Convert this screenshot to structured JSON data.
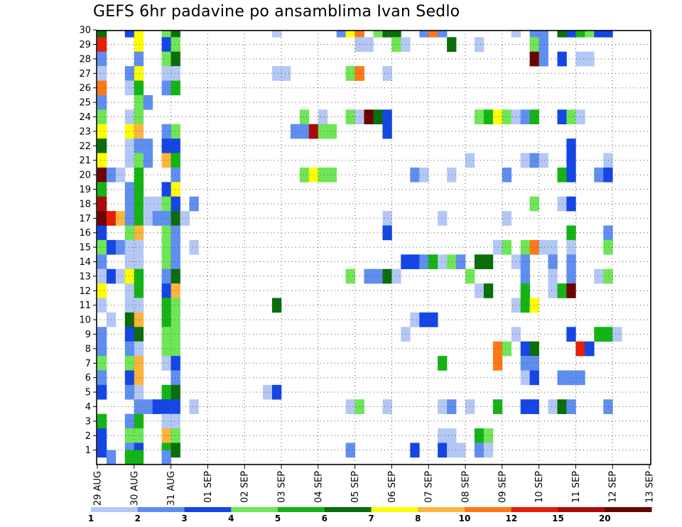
{
  "chart_data": {
    "type": "heatmap",
    "title": "GEFS 6hr padavine po ansamblima Ivan Sedlo",
    "x_tick_labels": [
      "29 AUG",
      "30 AUG",
      "31 AUG",
      "01 SEP",
      "02 SEP",
      "03 SEP",
      "04 SEP",
      "05 SEP",
      "06 SEP",
      "07 SEP",
      "08 SEP",
      "09 SEP",
      "10 SEP",
      "11 SEP",
      "12 SEP",
      "13 SEP"
    ],
    "y_tick_labels": [
      "1",
      "2",
      "3",
      "4",
      "5",
      "6",
      "7",
      "8",
      "9",
      "10",
      "11",
      "12",
      "13",
      "14",
      "15",
      "16",
      "17",
      "18",
      "19",
      "20",
      "21",
      "22",
      "23",
      "24",
      "25",
      "26",
      "27",
      "28",
      "29",
      "30"
    ],
    "grid": "dotted",
    "colorbar": {
      "bounds": [
        "1",
        "2",
        "3",
        "4",
        "5",
        "6",
        "7",
        "8",
        "10",
        "12",
        "15",
        "20"
      ],
      "colors": [
        "#b4c8f5",
        "#5f8ef0",
        "#1446e6",
        "#6ee655",
        "#14b414",
        "#0a6e0a",
        "#ffff00",
        "#ffb43c",
        "#ff7814",
        "#e61e0a",
        "#aa0a0a",
        "#6e0000"
      ]
    },
    "cells": [
      [
        0,
        30,
        "g"
      ],
      [
        0,
        29,
        "e"
      ],
      [
        0,
        28,
        "b"
      ],
      [
        0,
        27,
        "a"
      ],
      [
        0,
        26,
        "r"
      ],
      [
        0,
        25,
        "b"
      ],
      [
        0,
        24,
        "l"
      ],
      [
        0,
        23,
        "y"
      ],
      [
        0,
        22,
        "g"
      ],
      [
        0,
        21,
        "y"
      ],
      [
        0,
        20,
        "k"
      ],
      [
        0,
        19,
        "m"
      ],
      [
        0,
        18,
        "d"
      ],
      [
        0,
        17,
        "k"
      ],
      [
        0,
        16,
        "c"
      ],
      [
        0,
        15,
        "l"
      ],
      [
        0,
        14,
        "b"
      ],
      [
        0,
        13,
        "a"
      ],
      [
        0,
        12,
        "y"
      ],
      [
        0,
        11,
        "a"
      ],
      [
        0,
        9,
        "b"
      ],
      [
        0,
        8,
        "b"
      ],
      [
        0,
        7,
        "l"
      ],
      [
        0,
        6,
        "b"
      ],
      [
        0,
        5,
        "c"
      ],
      [
        0,
        3,
        "m"
      ],
      [
        0,
        2,
        "c"
      ],
      [
        0,
        1,
        "c"
      ],
      [
        1,
        20,
        "b"
      ],
      [
        1,
        17,
        "e"
      ],
      [
        1,
        15,
        "c"
      ],
      [
        1,
        13,
        "c"
      ],
      [
        1,
        10,
        "a"
      ],
      [
        1,
        0.5,
        "b"
      ],
      [
        2,
        20,
        "a"
      ],
      [
        2,
        17,
        "o"
      ],
      [
        2,
        15,
        "b"
      ],
      [
        2,
        13,
        "a"
      ],
      [
        3,
        30,
        "c"
      ],
      [
        3,
        27,
        "b"
      ],
      [
        3,
        26,
        "a"
      ],
      [
        3,
        24,
        "a"
      ],
      [
        3,
        23,
        "y"
      ],
      [
        3,
        22,
        "a"
      ],
      [
        3,
        21,
        "a"
      ],
      [
        3,
        19,
        "b"
      ],
      [
        3,
        18,
        "b"
      ],
      [
        3,
        17,
        "b"
      ],
      [
        3,
        16,
        "l"
      ],
      [
        3,
        15,
        "a"
      ],
      [
        3,
        14,
        "a"
      ],
      [
        3,
        13,
        "y"
      ],
      [
        3,
        12,
        "a"
      ],
      [
        3,
        11,
        "a"
      ],
      [
        3,
        10,
        "g"
      ],
      [
        3,
        9,
        "c"
      ],
      [
        3,
        8,
        "b"
      ],
      [
        3,
        7,
        "l"
      ],
      [
        3,
        6,
        "c"
      ],
      [
        3,
        5,
        "b"
      ],
      [
        3,
        3,
        "b"
      ],
      [
        3,
        2,
        "l"
      ],
      [
        3,
        1,
        "b"
      ],
      [
        3,
        0.5,
        "m"
      ],
      [
        4,
        30,
        "y"
      ],
      [
        4,
        29,
        "y"
      ],
      [
        4,
        28,
        "b"
      ],
      [
        4,
        27,
        "y"
      ],
      [
        4,
        26,
        "m"
      ],
      [
        4,
        25,
        "l"
      ],
      [
        4,
        24,
        "l"
      ],
      [
        4,
        23,
        "o"
      ],
      [
        4,
        22,
        "b"
      ],
      [
        4,
        21,
        "l"
      ],
      [
        4,
        20,
        "m"
      ],
      [
        4,
        19,
        "m"
      ],
      [
        4,
        18,
        "m"
      ],
      [
        4,
        17,
        "m"
      ],
      [
        4,
        16,
        "o"
      ],
      [
        4,
        15,
        "a"
      ],
      [
        4,
        14,
        "a"
      ],
      [
        4,
        13,
        "m"
      ],
      [
        4,
        12,
        "m"
      ],
      [
        4,
        11,
        "a"
      ],
      [
        4,
        10,
        "o"
      ],
      [
        4,
        9,
        "g"
      ],
      [
        4,
        8,
        "a"
      ],
      [
        4,
        7,
        "o"
      ],
      [
        4,
        6,
        "o"
      ],
      [
        4,
        5,
        "a"
      ],
      [
        4,
        4,
        "b"
      ],
      [
        4,
        3,
        "m"
      ],
      [
        4,
        2,
        "l"
      ],
      [
        4,
        1,
        "c"
      ],
      [
        4,
        0.5,
        "m"
      ],
      [
        5,
        25,
        "b"
      ],
      [
        5,
        22,
        "b"
      ],
      [
        5,
        21,
        "b"
      ],
      [
        5,
        18,
        "a"
      ],
      [
        5,
        17,
        "a"
      ],
      [
        5,
        4,
        "b"
      ],
      [
        6,
        18,
        "a"
      ],
      [
        6,
        17,
        "b"
      ],
      [
        6,
        4,
        "c"
      ],
      [
        7,
        30,
        "l"
      ],
      [
        7,
        29,
        "c"
      ],
      [
        7,
        28,
        "l"
      ],
      [
        7,
        27,
        "a"
      ],
      [
        7,
        26,
        "b"
      ],
      [
        7,
        23,
        "b"
      ],
      [
        7,
        22,
        "c"
      ],
      [
        7,
        21,
        "o"
      ],
      [
        7,
        19,
        "c"
      ],
      [
        7,
        18,
        "l"
      ],
      [
        7,
        17,
        "b"
      ],
      [
        7,
        16,
        "l"
      ],
      [
        7,
        15,
        "l"
      ],
      [
        7,
        14,
        "l"
      ],
      [
        7,
        13,
        "b"
      ],
      [
        7,
        12,
        "c"
      ],
      [
        7,
        11,
        "m"
      ],
      [
        7,
        10,
        "m"
      ],
      [
        7,
        9,
        "l"
      ],
      [
        7,
        8,
        "l"
      ],
      [
        7,
        7,
        "a"
      ],
      [
        7,
        5,
        "m"
      ],
      [
        7,
        4,
        "c"
      ],
      [
        7,
        3,
        "a"
      ],
      [
        7,
        2,
        "o"
      ],
      [
        7,
        1,
        "m"
      ],
      [
        7,
        0.5,
        "b"
      ],
      [
        8,
        30,
        "g"
      ],
      [
        8,
        29,
        "l"
      ],
      [
        8,
        28,
        "g"
      ],
      [
        8,
        27,
        "a"
      ],
      [
        8,
        26,
        "m"
      ],
      [
        8,
        23,
        "l"
      ],
      [
        8,
        22,
        "c"
      ],
      [
        8,
        21,
        "m"
      ],
      [
        8,
        20,
        "b"
      ],
      [
        8,
        19,
        "y"
      ],
      [
        8,
        18,
        "c"
      ],
      [
        8,
        17,
        "g"
      ],
      [
        8,
        16,
        "b"
      ],
      [
        8,
        15,
        "b"
      ],
      [
        8,
        14,
        "b"
      ],
      [
        8,
        13,
        "g"
      ],
      [
        8,
        12,
        "o"
      ],
      [
        8,
        11,
        "l"
      ],
      [
        8,
        10,
        "l"
      ],
      [
        8,
        9,
        "l"
      ],
      [
        8,
        8,
        "l"
      ],
      [
        8,
        7,
        "c"
      ],
      [
        8,
        6,
        "b"
      ],
      [
        8,
        5,
        "g"
      ],
      [
        8,
        4,
        "c"
      ],
      [
        8,
        3,
        "a"
      ],
      [
        8,
        2,
        "l"
      ],
      [
        8,
        1,
        "g"
      ],
      [
        9,
        17,
        "a"
      ],
      [
        10,
        18,
        "b"
      ],
      [
        10,
        15,
        "a"
      ],
      [
        10,
        4,
        "a"
      ],
      [
        18,
        5,
        "a"
      ],
      [
        19,
        30,
        "a"
      ],
      [
        19,
        27,
        "a"
      ],
      [
        19,
        11,
        "g"
      ],
      [
        19,
        5,
        "c"
      ],
      [
        20,
        27,
        "a"
      ],
      [
        21,
        23,
        "b"
      ],
      [
        22,
        24,
        "l"
      ],
      [
        22,
        23,
        "b"
      ],
      [
        22,
        20,
        "l"
      ],
      [
        23,
        23,
        "d"
      ],
      [
        23,
        20,
        "y"
      ],
      [
        24,
        24,
        "a"
      ],
      [
        24,
        23,
        "l"
      ],
      [
        24,
        20,
        "l"
      ],
      [
        25,
        23,
        "l"
      ],
      [
        25,
        20,
        "l"
      ],
      [
        26,
        30,
        "b"
      ],
      [
        27,
        30,
        "y"
      ],
      [
        27,
        27,
        "l"
      ],
      [
        27,
        24,
        "l"
      ],
      [
        27,
        13,
        "l"
      ],
      [
        27,
        4,
        "a"
      ],
      [
        27,
        1,
        "b"
      ],
      [
        28,
        30,
        "r"
      ],
      [
        28,
        29,
        "a"
      ],
      [
        28,
        27,
        "r"
      ],
      [
        28,
        24,
        "a"
      ],
      [
        28,
        4,
        "l"
      ],
      [
        29,
        29,
        "a"
      ],
      [
        29,
        24,
        "k"
      ],
      [
        29,
        13,
        "b"
      ],
      [
        30,
        30,
        "l"
      ],
      [
        30,
        24,
        "g"
      ],
      [
        30,
        13,
        "b"
      ],
      [
        31,
        30,
        "g"
      ],
      [
        31,
        27,
        "a"
      ],
      [
        31,
        24,
        "c"
      ],
      [
        31,
        23,
        "c"
      ],
      [
        31,
        17,
        "a"
      ],
      [
        31,
        16,
        "c"
      ],
      [
        31,
        13,
        "g"
      ],
      [
        31,
        4,
        "a"
      ],
      [
        32,
        30,
        "g"
      ],
      [
        32,
        29,
        "l"
      ],
      [
        32,
        13,
        "a"
      ],
      [
        33,
        29,
        "a"
      ],
      [
        33,
        9,
        "a"
      ],
      [
        33,
        14,
        "c"
      ],
      [
        34,
        20,
        "b"
      ],
      [
        34,
        14,
        "c"
      ],
      [
        34,
        10,
        "a"
      ],
      [
        34,
        1,
        "c"
      ],
      [
        35,
        30,
        "b"
      ],
      [
        35,
        20,
        "a"
      ],
      [
        35,
        14,
        "b"
      ],
      [
        35,
        10,
        "c"
      ],
      [
        36,
        30,
        "r"
      ],
      [
        36,
        14,
        "m"
      ],
      [
        36,
        10,
        "c"
      ],
      [
        37,
        30,
        "b"
      ],
      [
        37,
        17,
        "a"
      ],
      [
        37,
        14,
        "a"
      ],
      [
        37,
        7,
        "m"
      ],
      [
        37,
        4,
        "a"
      ],
      [
        37,
        2,
        "a"
      ],
      [
        37,
        1,
        "c"
      ],
      [
        38,
        29,
        "g"
      ],
      [
        38,
        20,
        "a"
      ],
      [
        38,
        14,
        "l"
      ],
      [
        38,
        4,
        "b"
      ],
      [
        38,
        2,
        "a"
      ],
      [
        38,
        1,
        "a"
      ],
      [
        39,
        14,
        "b"
      ],
      [
        39,
        1,
        "a"
      ],
      [
        40,
        21,
        "a"
      ],
      [
        40,
        13,
        "l"
      ],
      [
        40,
        4,
        "a"
      ],
      [
        41,
        29,
        "a"
      ],
      [
        41,
        24,
        "l"
      ],
      [
        41,
        14,
        "g"
      ],
      [
        41,
        12,
        "a"
      ],
      [
        41,
        2,
        "m"
      ],
      [
        41,
        1,
        "b"
      ],
      [
        42,
        24,
        "m"
      ],
      [
        42,
        14,
        "g"
      ],
      [
        42,
        12,
        "g"
      ],
      [
        42,
        2,
        "l"
      ],
      [
        42,
        1,
        "a"
      ],
      [
        43,
        24,
        "y"
      ],
      [
        43,
        15,
        "a"
      ],
      [
        43,
        8,
        "r"
      ],
      [
        43,
        7,
        "r"
      ],
      [
        43,
        4,
        "m"
      ],
      [
        44,
        24,
        "l"
      ],
      [
        44,
        20,
        "b"
      ],
      [
        44,
        17,
        "a"
      ],
      [
        44,
        15,
        "l"
      ],
      [
        44,
        8,
        "l"
      ],
      [
        45,
        30,
        "a"
      ],
      [
        45,
        24,
        "a"
      ],
      [
        45,
        14,
        "a"
      ],
      [
        45,
        11,
        "a"
      ],
      [
        45,
        9,
        "a"
      ],
      [
        46,
        24,
        "b"
      ],
      [
        46,
        21,
        "a"
      ],
      [
        46,
        15,
        "l"
      ],
      [
        46,
        14,
        "b"
      ],
      [
        46,
        13,
        "b"
      ],
      [
        46,
        12,
        "m"
      ],
      [
        46,
        11,
        "m"
      ],
      [
        46,
        8,
        "c"
      ],
      [
        46,
        7,
        "b"
      ],
      [
        46,
        6,
        "a"
      ],
      [
        46,
        4,
        "c"
      ],
      [
        47,
        30,
        "b"
      ],
      [
        47,
        29,
        "l"
      ],
      [
        47,
        28,
        "k"
      ],
      [
        47,
        24,
        "m"
      ],
      [
        47,
        21,
        "b"
      ],
      [
        47,
        18,
        "l"
      ],
      [
        47,
        15,
        "r"
      ],
      [
        47,
        11,
        "y"
      ],
      [
        47,
        8,
        "g"
      ],
      [
        47,
        7,
        "b"
      ],
      [
        47,
        6,
        "c"
      ],
      [
        47,
        4,
        "c"
      ],
      [
        48,
        30,
        "b"
      ],
      [
        48,
        29,
        "b"
      ],
      [
        48,
        28,
        "b"
      ],
      [
        48,
        21,
        "a"
      ],
      [
        48,
        15,
        "a"
      ],
      [
        49,
        15,
        "a"
      ],
      [
        49,
        14,
        "b"
      ],
      [
        49,
        13,
        "a"
      ],
      [
        49,
        12,
        "a"
      ],
      [
        49,
        4,
        "a"
      ],
      [
        50,
        30,
        "g"
      ],
      [
        50,
        28,
        "c"
      ],
      [
        50,
        24,
        "c"
      ],
      [
        50,
        20,
        "m"
      ],
      [
        50,
        18,
        "a"
      ],
      [
        50,
        12,
        "m"
      ],
      [
        50,
        6,
        "b"
      ],
      [
        50,
        4,
        "g"
      ],
      [
        51,
        30,
        "c"
      ],
      [
        51,
        24,
        "l"
      ],
      [
        51,
        22,
        "c"
      ],
      [
        51,
        21,
        "c"
      ],
      [
        51,
        20,
        "c"
      ],
      [
        51,
        18,
        "c"
      ],
      [
        51,
        16,
        "m"
      ],
      [
        51,
        15,
        "a"
      ],
      [
        51,
        14,
        "b"
      ],
      [
        51,
        13,
        "b"
      ],
      [
        51,
        12,
        "k"
      ],
      [
        51,
        9,
        "c"
      ],
      [
        51,
        6,
        "b"
      ],
      [
        51,
        4,
        "b"
      ],
      [
        52,
        30,
        "m"
      ],
      [
        52,
        28,
        "a"
      ],
      [
        52,
        24,
        "a"
      ],
      [
        52,
        8,
        "e"
      ],
      [
        52,
        6,
        "b"
      ],
      [
        53,
        30,
        "l"
      ],
      [
        53,
        28,
        "a"
      ],
      [
        53,
        8,
        "c"
      ],
      [
        54,
        30,
        "c"
      ],
      [
        54,
        20,
        "b"
      ],
      [
        54,
        13,
        "a"
      ],
      [
        54,
        9,
        "m"
      ],
      [
        55,
        30,
        "c"
      ],
      [
        55,
        21,
        "a"
      ],
      [
        55,
        20,
        "c"
      ],
      [
        55,
        16,
        "b"
      ],
      [
        55,
        15,
        "l"
      ],
      [
        55,
        13,
        "l"
      ],
      [
        55,
        9,
        "m"
      ],
      [
        55,
        4,
        "b"
      ],
      [
        56,
        9,
        "a"
      ]
    ]
  }
}
